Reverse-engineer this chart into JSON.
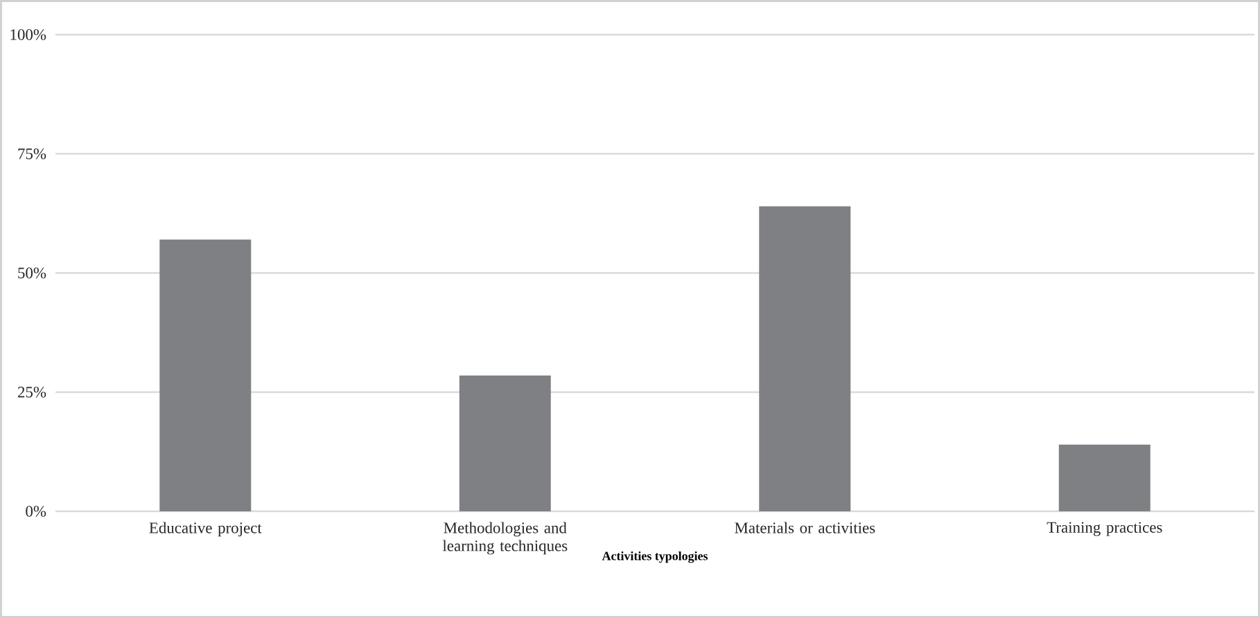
{
  "chart_data": {
    "type": "bar",
    "xlabel": "Activities typologies",
    "categories": [
      "Educative project",
      "Methodologies and learning techniques",
      "Materials or activities",
      "Training practices"
    ],
    "values": [
      57,
      28.5,
      64,
      14
    ],
    "color": "#7f8083",
    "ylim": [
      0,
      100
    ],
    "yticks": [
      {
        "value": 0,
        "label": "0%"
      },
      {
        "value": 25,
        "label": "25%"
      },
      {
        "value": 50,
        "label": "50%"
      },
      {
        "value": 75,
        "label": "75%"
      },
      {
        "value": 100,
        "label": "100%"
      }
    ],
    "grid": "y"
  }
}
